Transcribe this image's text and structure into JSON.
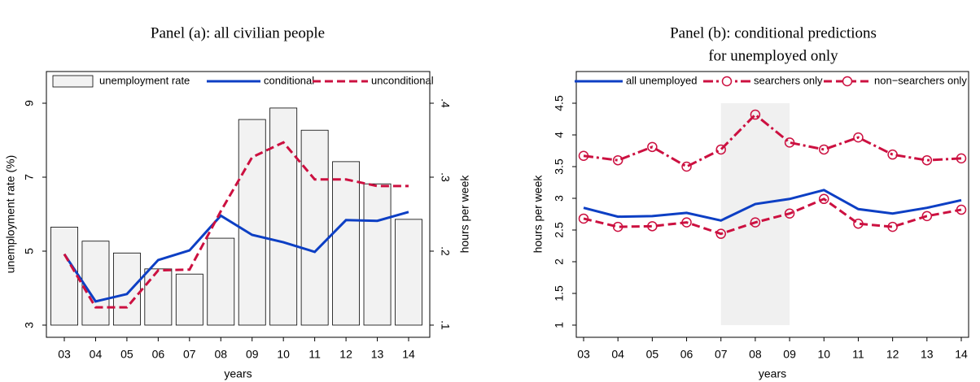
{
  "chart_data": [
    {
      "type": "combo",
      "title": "Panel (a): all civilian people",
      "xlabel": "years",
      "ylabel": "unemployment rate (%)",
      "y2label": "hours per week",
      "categories": [
        "03",
        "04",
        "05",
        "06",
        "07",
        "08",
        "09",
        "10",
        "11",
        "12",
        "13",
        "14"
      ],
      "ylim": [
        3,
        9
      ],
      "yticks": [
        3,
        5,
        7,
        9
      ],
      "y2lim": [
        0.1,
        0.4
      ],
      "y2ticks": [
        {
          "value": 0.1,
          "label": ".1"
        },
        {
          "value": 0.2,
          "label": ".2"
        },
        {
          "value": 0.3,
          "label": ".3"
        },
        {
          "value": 0.4,
          "label": ".4"
        }
      ],
      "series": [
        {
          "name": "unemployment rate",
          "type": "bar",
          "color": "#f2f2f2",
          "values": [
            5.65,
            5.27,
            4.95,
            4.52,
            4.38,
            5.35,
            8.56,
            8.87,
            8.27,
            7.42,
            6.82,
            5.86
          ]
        },
        {
          "name": "conditional",
          "type": "line",
          "axis": "y2",
          "color": "#0d3fc4",
          "linestyle": "solid",
          "values": [
            0.196,
            0.132,
            0.142,
            0.188,
            0.201,
            0.248,
            0.222,
            0.212,
            0.199,
            0.242,
            0.241,
            0.253
          ]
        },
        {
          "name": "unconditional",
          "type": "line",
          "axis": "y2",
          "color": "#cc1040",
          "linestyle": "dash",
          "values": [
            0.196,
            0.124,
            0.124,
            0.174,
            0.175,
            0.254,
            0.327,
            0.347,
            0.297,
            0.297,
            0.288,
            0.288
          ]
        }
      ]
    },
    {
      "type": "line",
      "title": [
        "Panel (b): conditional predictions",
        "for unemployed only"
      ],
      "xlabel": "years",
      "ylabel": "hours per week",
      "categories": [
        "03",
        "04",
        "05",
        "06",
        "07",
        "08",
        "09",
        "10",
        "11",
        "12",
        "13",
        "14"
      ],
      "ylim": [
        1,
        4.5
      ],
      "yticks": [
        1,
        1.5,
        2,
        2.5,
        3,
        3.5,
        4,
        4.5
      ],
      "shade": [
        "07",
        "09"
      ],
      "series": [
        {
          "name": "all unemployed",
          "type": "line",
          "color": "#0d3fc4",
          "linestyle": "solid",
          "values": [
            2.85,
            2.71,
            2.72,
            2.77,
            2.65,
            2.91,
            2.99,
            3.13,
            2.83,
            2.76,
            2.85,
            2.97
          ]
        },
        {
          "name": "searchers only",
          "type": "line",
          "color": "#cc1040",
          "linestyle": "dashdot",
          "marker": "circle",
          "values": [
            3.67,
            3.6,
            3.81,
            3.5,
            3.77,
            4.32,
            3.88,
            3.77,
            3.96,
            3.69,
            3.6,
            3.63
          ]
        },
        {
          "name": "non−searchers only",
          "type": "line",
          "color": "#cc1040",
          "linestyle": "dash",
          "marker": "circle",
          "values": [
            2.68,
            2.55,
            2.56,
            2.62,
            2.44,
            2.62,
            2.76,
            2.99,
            2.6,
            2.55,
            2.72,
            2.82
          ]
        }
      ]
    }
  ]
}
